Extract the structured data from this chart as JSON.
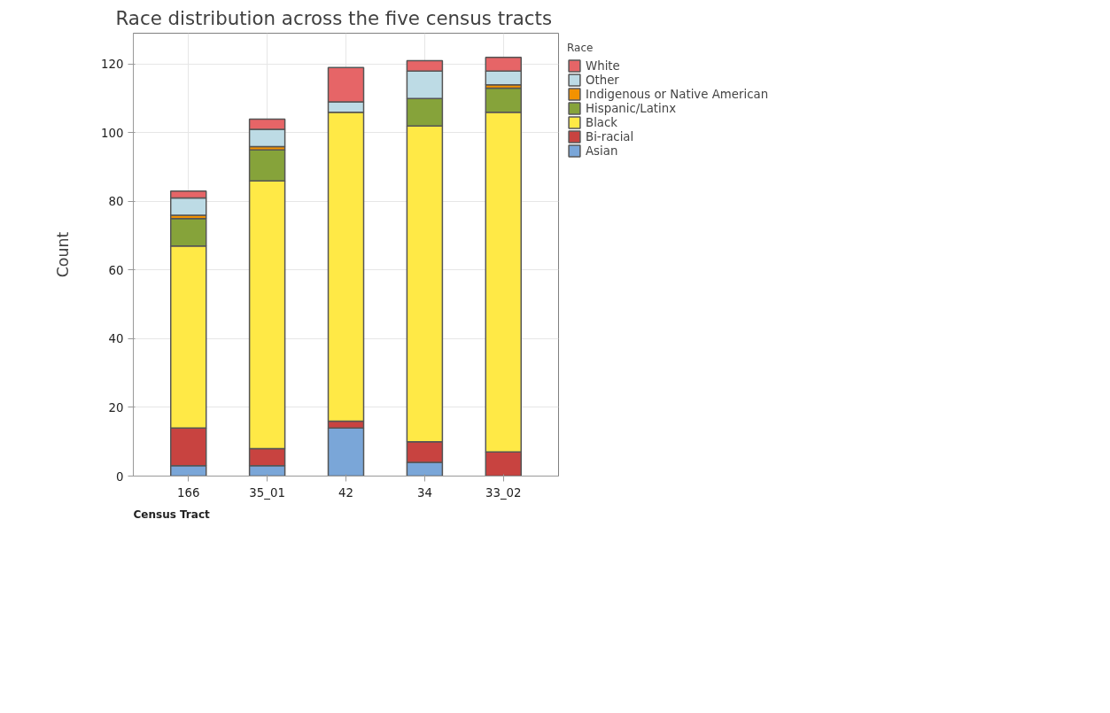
{
  "chart_data": {
    "type": "bar",
    "stacked": true,
    "title": "Race distribution across the five census tracts",
    "xlabel": "Census Tract",
    "ylabel": "Count",
    "legend_title": "Race",
    "categories": [
      "166",
      "35_01",
      "42",
      "34",
      "33_02"
    ],
    "series": [
      {
        "name": "Asian",
        "color": "#7aa6d8",
        "values": [
          3,
          3,
          14,
          4,
          0
        ]
      },
      {
        "name": "Bi-racial",
        "color": "#c84340",
        "values": [
          11,
          5,
          2,
          6,
          7
        ]
      },
      {
        "name": "Black",
        "color": "#ffe946",
        "values": [
          53,
          78,
          90,
          92,
          99
        ]
      },
      {
        "name": "Hispanic/Latinx",
        "color": "#86a33a",
        "values": [
          8,
          9,
          0,
          8,
          7
        ]
      },
      {
        "name": "Indigenous or Native American",
        "color": "#f39200",
        "values": [
          1,
          1,
          0,
          0,
          1
        ]
      },
      {
        "name": "Other",
        "color": "#bddbe5",
        "values": [
          5,
          5,
          3,
          8,
          4
        ]
      },
      {
        "name": "White",
        "color": "#e66567",
        "values": [
          2,
          3,
          10,
          3,
          4
        ]
      }
    ],
    "ylim": [
      0,
      129
    ],
    "yticks": [
      0,
      20,
      40,
      60,
      80,
      100,
      120
    ],
    "grid": true,
    "legend": "right"
  }
}
